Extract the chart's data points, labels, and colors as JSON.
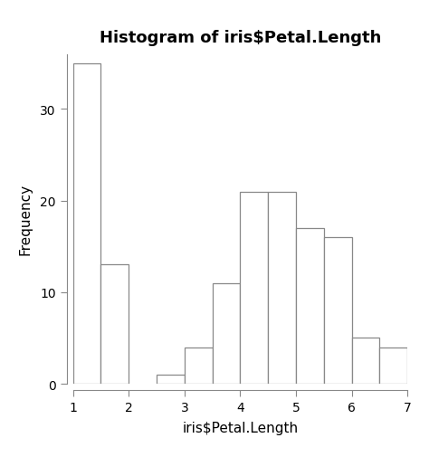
{
  "title": "Histogram of iris$Petal.Length",
  "xlabel": "iris$Petal.Length",
  "ylabel": "Frequency",
  "bin_edges": [
    1.0,
    1.5,
    2.0,
    2.5,
    3.0,
    3.5,
    4.0,
    4.5,
    5.0,
    5.5,
    6.0,
    6.5,
    7.0
  ],
  "frequencies": [
    35,
    13,
    0,
    1,
    4,
    11,
    21,
    21,
    17,
    16,
    5,
    4
  ],
  "bar_facecolor": "#ffffff",
  "bar_edgecolor": "#888888",
  "bg_color": "#ffffff",
  "xlim": [
    1.0,
    7.0
  ],
  "ylim": [
    0,
    36
  ],
  "xticks": [
    1,
    2,
    3,
    4,
    5,
    6,
    7
  ],
  "yticks": [
    0,
    10,
    20,
    30
  ],
  "title_fontsize": 13,
  "label_fontsize": 11,
  "tick_fontsize": 10,
  "spine_color": "#888888"
}
